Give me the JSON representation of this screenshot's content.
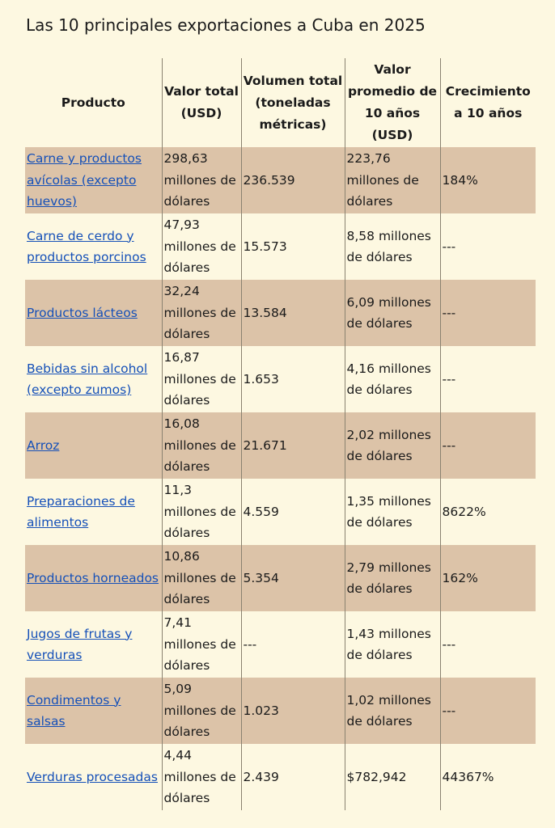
{
  "title": "Las 10 principales exportaciones a Cuba en 2025",
  "columns": [
    "Producto",
    "Valor total (USD)",
    "Volumen total (toneladas métricas)",
    "Valor promedio de 10 años (USD)",
    "Crecimiento a 10 años"
  ],
  "rows": [
    {
      "product": "Carne y productos avícolas (excepto huevos)",
      "total": "298,63 millones de dólares",
      "volume": "236.539",
      "avg": "223,76 millones de dólares",
      "growth": "184%"
    },
    {
      "product": "Carne de cerdo y productos porcinos",
      "total": "47,93 millones de dólares",
      "volume": "15.573",
      "avg": "8,58 millones de dólares",
      "growth": "---"
    },
    {
      "product": "Productos lácteos",
      "total": "32,24 millones de dólares",
      "volume": "13.584",
      "avg": "6,09 millones de dólares",
      "growth": "---"
    },
    {
      "product": "Bebidas sin alcohol (excepto zumos)",
      "total": "16,87 millones de dólares",
      "volume": "1.653",
      "avg": "4,16 millones de dólares",
      "growth": "---"
    },
    {
      "product": "Arroz",
      "total": "16,08 millones de dólares",
      "volume": "21.671",
      "avg": "2,02 millones de dólares",
      "growth": "---"
    },
    {
      "product": "Preparaciones de alimentos",
      "total": "11,3 millones de dólares",
      "volume": "4.559",
      "avg": "1,35 millones de dólares",
      "growth": "8622%"
    },
    {
      "product": "Productos horneados",
      "total": "10,86 millones de dólares",
      "volume": "5.354",
      "avg": "2,79 millones de dólares",
      "growth": "162%"
    },
    {
      "product": "Jugos de frutas y verduras",
      "total": "7,41 millones de dólares",
      "volume": "---",
      "avg": "1,43 millones de dólares",
      "growth": "---"
    },
    {
      "product": "Condimentos y salsas",
      "total": "5,09 millones de dólares",
      "volume": "1.023",
      "avg": "1,02 millones de dólares",
      "growth": "---"
    },
    {
      "product": "Verduras procesadas",
      "total": "4,44 millones de dólares",
      "volume": "2.439",
      "avg": "$782,942",
      "growth": "44367%"
    }
  ]
}
